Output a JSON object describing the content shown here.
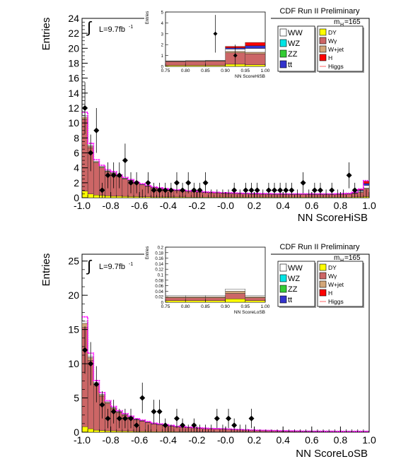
{
  "chart_data": [
    {
      "type": "bar",
      "title": "CDF Run II Preliminary",
      "mass_label": "m",
      "mass_sub": "H",
      "mass_value": "=165",
      "lumi_label": "L=9.7fb",
      "lumi_exp": "-1",
      "ylabel": "Entries",
      "xlabel": "NN ScoreHiSB",
      "xlim": [
        -1.0,
        1.0
      ],
      "ylim": [
        0,
        24
      ],
      "xticks": [
        "-1.0",
        "-0.8",
        "-0.6",
        "-0.4",
        "-0.2",
        "-0.0",
        "0.2",
        "0.4",
        "0.6",
        "0.8",
        "1.0"
      ],
      "yticks": [
        "0",
        "2",
        "4",
        "6",
        "8",
        "10",
        "12",
        "14",
        "16",
        "18",
        "20",
        "22",
        "24"
      ],
      "bin_edges": [
        -1.0,
        -0.96,
        -0.92,
        -0.88,
        -0.84,
        -0.8,
        -0.76,
        -0.72,
        -0.68,
        -0.64,
        -0.6,
        -0.56,
        -0.52,
        -0.48,
        -0.44,
        -0.4,
        -0.36,
        -0.32,
        -0.28,
        -0.24,
        -0.2,
        -0.16,
        -0.12,
        -0.08,
        -0.04,
        0.0,
        0.04,
        0.08,
        0.12,
        0.16,
        0.2,
        0.24,
        0.28,
        0.32,
        0.36,
        0.4,
        0.44,
        0.48,
        0.52,
        0.56,
        0.6,
        0.64,
        0.68,
        0.72,
        0.76,
        0.8,
        0.84,
        0.88,
        0.92,
        0.96,
        1.0
      ],
      "series": [
        {
          "name": "DY",
          "values": [
            0.9,
            0.5,
            0.35,
            0.3,
            0.25,
            0.2,
            0.2,
            0.18,
            0.15,
            0.15,
            0.12,
            0.12,
            0.1,
            0.1,
            0.1,
            0.1,
            0.1,
            0.1,
            0.08,
            0.08,
            0.08,
            0.08,
            0.08,
            0.08,
            0.08,
            0.08,
            0.08,
            0.08,
            0.08,
            0.08,
            0.08,
            0.08,
            0.08,
            0.08,
            0.08,
            0.08,
            0.08,
            0.08,
            0.08,
            0.08,
            0.08,
            0.08,
            0.08,
            0.08,
            0.08,
            0.08,
            0.08,
            0.1,
            0.1,
            0.15
          ]
        },
        {
          "name": "Wγ",
          "values": [
            9.6,
            6.2,
            4.3,
            3.7,
            3.2,
            3.0,
            2.6,
            2.3,
            2.1,
            1.8,
            1.6,
            1.4,
            1.2,
            1.1,
            1.0,
            0.9,
            0.85,
            0.8,
            0.75,
            0.7,
            0.65,
            0.6,
            0.58,
            0.55,
            0.5,
            0.48,
            0.46,
            0.44,
            0.42,
            0.4,
            0.4,
            0.38,
            0.38,
            0.36,
            0.36,
            0.35,
            0.35,
            0.35,
            0.35,
            0.35,
            0.35,
            0.35,
            0.35,
            0.35,
            0.36,
            0.38,
            0.4,
            0.45,
            0.6,
            1.0
          ]
        },
        {
          "name": "W+jet",
          "values": [
            0.3,
            0.2,
            0.15,
            0.12,
            0.1,
            0.1,
            0.08,
            0.08,
            0.06,
            0.06,
            0.05,
            0.05,
            0.05,
            0.05,
            0.04,
            0.04,
            0.04,
            0.04,
            0.04,
            0.04,
            0.04,
            0.04,
            0.04,
            0.04,
            0.04,
            0.04,
            0.04,
            0.04,
            0.04,
            0.04,
            0.04,
            0.04,
            0.04,
            0.04,
            0.04,
            0.04,
            0.04,
            0.04,
            0.04,
            0.04,
            0.04,
            0.04,
            0.04,
            0.04,
            0.04,
            0.04,
            0.04,
            0.05,
            0.08,
            0.15
          ]
        },
        {
          "name": "WW",
          "values": [
            0.2,
            0.1,
            0.08,
            0.06,
            0.05,
            0.05,
            0.04,
            0.04,
            0.03,
            0.03,
            0.03,
            0.03,
            0.03,
            0.03,
            0.03,
            0.03,
            0.03,
            0.03,
            0.03,
            0.03,
            0.03,
            0.03,
            0.03,
            0.03,
            0.03,
            0.03,
            0.03,
            0.03,
            0.03,
            0.03,
            0.03,
            0.03,
            0.03,
            0.03,
            0.03,
            0.03,
            0.03,
            0.03,
            0.03,
            0.03,
            0.03,
            0.03,
            0.03,
            0.03,
            0.03,
            0.03,
            0.04,
            0.06,
            0.15,
            0.35
          ]
        },
        {
          "name": "tt",
          "values": [
            0,
            0,
            0,
            0,
            0,
            0,
            0,
            0,
            0,
            0,
            0,
            0,
            0,
            0,
            0,
            0,
            0,
            0,
            0,
            0,
            0,
            0,
            0,
            0,
            0,
            0,
            0,
            0,
            0,
            0,
            0,
            0,
            0,
            0,
            0,
            0,
            0,
            0,
            0,
            0,
            0,
            0,
            0,
            0,
            0,
            0,
            0,
            0.02,
            0.1,
            0.25
          ]
        },
        {
          "name": "H",
          "values": [
            0,
            0,
            0,
            0,
            0,
            0,
            0,
            0,
            0,
            0,
            0,
            0,
            0,
            0,
            0,
            0,
            0,
            0,
            0,
            0,
            0,
            0,
            0,
            0,
            0,
            0,
            0,
            0,
            0,
            0,
            0,
            0,
            0,
            0,
            0,
            0,
            0,
            0,
            0,
            0,
            0,
            0,
            0,
            0,
            0,
            0,
            0,
            0.03,
            0.1,
            0.3
          ]
        }
      ],
      "data_points": {
        "x": [
          -0.98,
          -0.94,
          -0.9,
          -0.86,
          -0.82,
          -0.78,
          -0.74,
          -0.7,
          -0.66,
          -0.62,
          -0.58,
          -0.54,
          -0.5,
          -0.46,
          -0.42,
          -0.38,
          -0.34,
          -0.3,
          -0.26,
          -0.22,
          -0.18,
          -0.14,
          -0.1,
          -0.06,
          -0.02,
          0.02,
          0.06,
          0.1,
          0.14,
          0.18,
          0.22,
          0.26,
          0.3,
          0.34,
          0.38,
          0.42,
          0.46,
          0.5,
          0.54,
          0.58,
          0.62,
          0.66,
          0.7,
          0.74,
          0.78,
          0.82,
          0.86,
          0.9,
          0.94,
          0.98
        ],
        "y": [
          12,
          6,
          9,
          1,
          3,
          3,
          3,
          5,
          2,
          2,
          0,
          2,
          1,
          1,
          1,
          1,
          2,
          1,
          2,
          1,
          1,
          2,
          0,
          0,
          0,
          0,
          1,
          0,
          1,
          1,
          1,
          0,
          1,
          1,
          1,
          1,
          1,
          0,
          2,
          0,
          1,
          1,
          0,
          1,
          0,
          0,
          3,
          1,
          0,
          0
        ]
      },
      "legend_left": [
        {
          "label": "WW",
          "color": "#ffffff"
        },
        {
          "label": "WZ",
          "color": "#00e5e5"
        },
        {
          "label": "ZZ",
          "color": "#33cc33"
        },
        {
          "label": "tt",
          "color": "#3333cc"
        }
      ],
      "legend_right": [
        {
          "label": "DY",
          "color": "#ffff00"
        },
        {
          "label": "Wγ",
          "color": "#cc6666"
        },
        {
          "label": "W+jet",
          "color": "#d2a679"
        },
        {
          "label": "H",
          "color": "#ff0000"
        },
        {
          "label": "Higgs",
          "color": "#ff6666"
        }
      ],
      "inset": {
        "ylabel": "Entries",
        "xlabel": "NN ScoreHiSB",
        "xlim": [
          0.75,
          1.0
        ],
        "ylim": [
          0,
          5
        ],
        "xticks": [
          "0.75",
          "0.80",
          "0.85",
          "0.90",
          "0.95",
          "1.00"
        ],
        "yticks": [
          "0",
          "1",
          "2",
          "3",
          "4",
          "5"
        ]
      }
    },
    {
      "type": "bar",
      "title": "CDF Run II Preliminary",
      "mass_label": "m",
      "mass_sub": "H",
      "mass_value": "=165",
      "lumi_label": "L=9.7fb",
      "lumi_exp": "-1",
      "ylabel": "Entries",
      "xlabel": "NN ScoreLoSB",
      "xlim": [
        -1.0,
        1.0
      ],
      "ylim": [
        0,
        26
      ],
      "xticks": [
        "-1.0",
        "-0.8",
        "-0.6",
        "-0.4",
        "-0.2",
        "-0.0",
        "0.2",
        "0.4",
        "0.6",
        "0.8",
        "1.0"
      ],
      "yticks": [
        "0",
        "5",
        "10",
        "15",
        "20",
        "25"
      ],
      "bin_edges": [
        -1.0,
        -0.96,
        -0.92,
        -0.88,
        -0.84,
        -0.8,
        -0.76,
        -0.72,
        -0.68,
        -0.64,
        -0.6,
        -0.56,
        -0.52,
        -0.48,
        -0.44,
        -0.4,
        -0.36,
        -0.32,
        -0.28,
        -0.24,
        -0.2,
        -0.16,
        -0.12,
        -0.08,
        -0.04,
        0.0,
        0.04,
        0.08,
        0.12,
        0.16,
        0.2,
        0.24,
        0.28,
        0.32,
        0.36,
        0.4,
        0.44,
        0.48,
        0.52,
        0.56,
        0.6,
        0.64,
        0.68,
        0.72,
        0.76,
        0.8,
        0.84,
        0.88,
        0.92,
        0.96,
        1.0
      ],
      "series": [
        {
          "name": "DY",
          "values": [
            0.8,
            0.5,
            0.3,
            0.25,
            0.2,
            0.2,
            0.15,
            0.15,
            0.12,
            0.1,
            0.1,
            0.1,
            0.08,
            0.08,
            0.08,
            0.08,
            0.06,
            0.06,
            0.06,
            0.06,
            0.05,
            0.05,
            0.05,
            0.05,
            0.05,
            0.05,
            0.05,
            0.05,
            0.05,
            0.05,
            0.04,
            0.04,
            0.04,
            0.04,
            0.04,
            0.04,
            0.04,
            0.04,
            0.03,
            0.03,
            0.03,
            0.03,
            0.03,
            0.03,
            0.03,
            0.03,
            0.03,
            0.03,
            0.03,
            0.03
          ]
        },
        {
          "name": "Wγ",
          "values": [
            14.5,
            10.0,
            6.5,
            5.0,
            4.0,
            3.2,
            2.7,
            2.3,
            2.0,
            1.7,
            1.5,
            1.3,
            1.1,
            1.0,
            0.9,
            0.8,
            0.7,
            0.65,
            0.6,
            0.55,
            0.5,
            0.45,
            0.42,
            0.4,
            0.38,
            0.35,
            0.3,
            0.28,
            0.25,
            0.22,
            0.2,
            0.18,
            0.16,
            0.14,
            0.12,
            0.11,
            0.1,
            0.09,
            0.08,
            0.08,
            0.07,
            0.07,
            0.06,
            0.06,
            0.05,
            0.05,
            0.05,
            0.05,
            0.05,
            0.05
          ]
        },
        {
          "name": "W+jet",
          "values": [
            0.6,
            0.4,
            0.3,
            0.2,
            0.15,
            0.12,
            0.1,
            0.1,
            0.08,
            0.06,
            0.06,
            0.05,
            0.05,
            0.05,
            0.04,
            0.04,
            0.04,
            0.04,
            0.03,
            0.03,
            0.03,
            0.03,
            0.03,
            0.03,
            0.03,
            0.03,
            0.03,
            0.02,
            0.02,
            0.02,
            0.02,
            0.02,
            0.02,
            0.02,
            0.02,
            0.02,
            0.02,
            0.02,
            0.02,
            0.02,
            0.02,
            0.02,
            0.02,
            0.02,
            0.02,
            0.02,
            0.02,
            0.02,
            0.02,
            0.02
          ]
        },
        {
          "name": "WW",
          "values": [
            0.3,
            0.2,
            0.15,
            0.1,
            0.08,
            0.08,
            0.06,
            0.05,
            0.05,
            0.04,
            0.04,
            0.04,
            0.03,
            0.03,
            0.03,
            0.03,
            0.03,
            0.02,
            0.02,
            0.02,
            0.02,
            0.02,
            0.02,
            0.02,
            0.02,
            0.02,
            0.02,
            0.02,
            0.02,
            0.02,
            0.02,
            0.02,
            0.02,
            0.02,
            0.02,
            0.02,
            0.02,
            0.02,
            0.02,
            0.02,
            0.02,
            0.02,
            0.02,
            0.02,
            0.02,
            0.02,
            0.02,
            0.02,
            0.02,
            0.02
          ]
        }
      ],
      "data_points": {
        "x": [
          -0.98,
          -0.94,
          -0.9,
          -0.86,
          -0.82,
          -0.78,
          -0.74,
          -0.7,
          -0.66,
          -0.62,
          -0.58,
          -0.54,
          -0.5,
          -0.46,
          -0.42,
          -0.38,
          -0.34,
          -0.3,
          -0.26,
          -0.22,
          -0.18,
          -0.14,
          -0.1,
          -0.06,
          -0.02,
          0.02,
          0.06,
          0.1,
          0.14,
          0.18
        ],
        "y": [
          12,
          10,
          7,
          4,
          2,
          3,
          2,
          2,
          2,
          1,
          5,
          0,
          3,
          3,
          1,
          0,
          2,
          1,
          0,
          1,
          0,
          0,
          0,
          2,
          0,
          2,
          1,
          0,
          0,
          2
        ]
      },
      "legend_left": [
        {
          "label": "WW",
          "color": "#ffffff"
        },
        {
          "label": "WZ",
          "color": "#00e5e5"
        },
        {
          "label": "ZZ",
          "color": "#33cc33"
        },
        {
          "label": "tt",
          "color": "#3333cc"
        }
      ],
      "legend_right": [
        {
          "label": "DY",
          "color": "#ffff00"
        },
        {
          "label": "Wγ",
          "color": "#cc6666"
        },
        {
          "label": "W+jet",
          "color": "#d2a679"
        },
        {
          "label": "H",
          "color": "#ff0000"
        },
        {
          "label": "Higgs",
          "color": "#ff6666"
        }
      ],
      "inset": {
        "ylabel": "Entries",
        "xlabel": "NN ScoreLoSB",
        "xlim": [
          0.75,
          1.0
        ],
        "ylim": [
          0,
          0.2
        ],
        "xticks": [
          "0.75",
          "0.80",
          "0.85",
          "0.90",
          "0.95",
          "1.00"
        ],
        "yticks": [
          "0",
          "0.02",
          "0.04",
          "0.06",
          "0.08",
          "0.1",
          "0.12",
          "0.14",
          "0.16",
          "0.18",
          "0.2"
        ]
      }
    }
  ],
  "colors": {
    "signal_line": "#ff00ff",
    "data_marker": "#000000"
  }
}
